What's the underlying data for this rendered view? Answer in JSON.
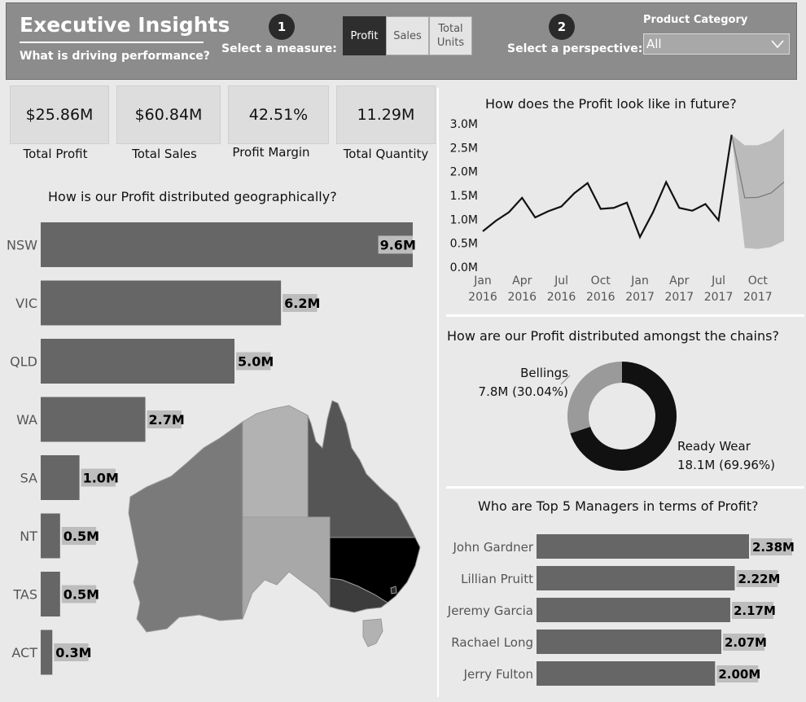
{
  "header": {
    "title": "Executive Insights",
    "subtitle": "What is driving performance?",
    "step1_number": "1",
    "step1_label": "Select a measure:",
    "measures": [
      {
        "label": "Profit",
        "active": true
      },
      {
        "label": "Sales",
        "active": false
      },
      {
        "label": "Total Units",
        "active": false
      }
    ],
    "step2_number": "2",
    "step2_label": "Select a perspective:",
    "category_label": "Product Category",
    "category_value": "All",
    "chevron_icon": "chevron-down-icon"
  },
  "kpis": [
    {
      "value": "$25.86M",
      "label": "Total Profit"
    },
    {
      "value": "$60.84M",
      "label": "Total Sales"
    },
    {
      "value": "42.51%",
      "label": "Profit Margin"
    },
    {
      "value": "11.29M",
      "label": "Total Quantity"
    }
  ],
  "geo": {
    "title": "How is our Profit distributed geographically?",
    "map_icon": "australia-map-icon"
  },
  "forecast": {
    "title": "How does the Profit look like in future?"
  },
  "chains": {
    "title": "How are our Profit distributed amongst the chains?"
  },
  "managers": {
    "title": "Who are Top 5 Managers in terms of Profit?"
  },
  "chart_data": [
    {
      "type": "bar",
      "orientation": "horizontal",
      "title": "How is our Profit distributed geographically?",
      "categories": [
        "NSW",
        "VIC",
        "QLD",
        "WA",
        "SA",
        "NT",
        "TAS",
        "ACT"
      ],
      "values": [
        9.6,
        6.2,
        5.0,
        2.7,
        1.0,
        0.5,
        0.5,
        0.3
      ],
      "data_labels": [
        "9.6M",
        "6.2M",
        "5.0M",
        "2.7M",
        "1.0M",
        "0.5M",
        "0.5M",
        "0.3M"
      ],
      "color": "#666666"
    },
    {
      "type": "line",
      "title": "How does the Profit look like in future?",
      "x": [
        "2016-01",
        "2016-02",
        "2016-03",
        "2016-04",
        "2016-05",
        "2016-06",
        "2016-07",
        "2016-08",
        "2016-09",
        "2016-10",
        "2016-11",
        "2016-12",
        "2017-01",
        "2017-02",
        "2017-03",
        "2017-04",
        "2017-05",
        "2017-06",
        "2017-07",
        "2017-08"
      ],
      "values": [
        0.75,
        0.97,
        1.15,
        1.45,
        1.04,
        1.17,
        1.27,
        1.55,
        1.76,
        1.22,
        1.24,
        1.35,
        0.63,
        1.15,
        1.78,
        1.24,
        1.18,
        1.32,
        0.98,
        2.77
      ],
      "forecast": {
        "x": [
          "2017-08",
          "2017-09",
          "2017-10",
          "2017-11",
          "2017-12"
        ],
        "values": [
          2.77,
          1.45,
          1.46,
          1.55,
          1.78
        ],
        "upper": [
          2.77,
          2.55,
          2.55,
          2.65,
          2.9
        ],
        "lower": [
          2.77,
          0.4,
          0.38,
          0.42,
          0.55
        ]
      },
      "yticks": [
        "0.0M",
        "0.5M",
        "1.0M",
        "1.5M",
        "2.0M",
        "2.5M",
        "3.0M"
      ],
      "xticks": [
        {
          "month": "Jan",
          "year": "2016",
          "at": "2016-01"
        },
        {
          "month": "Apr",
          "year": "2016",
          "at": "2016-04"
        },
        {
          "month": "Jul",
          "year": "2016",
          "at": "2016-07"
        },
        {
          "month": "Oct",
          "year": "2016",
          "at": "2016-10"
        },
        {
          "month": "Jan",
          "year": "2017",
          "at": "2017-01"
        },
        {
          "month": "Apr",
          "year": "2017",
          "at": "2017-04"
        },
        {
          "month": "Jul",
          "year": "2017",
          "at": "2017-07"
        },
        {
          "month": "Oct",
          "year": "2017",
          "at": "2017-10"
        }
      ],
      "ylim": [
        0,
        3.0
      ],
      "line_color": "#111111",
      "band_color": "#bbbbbb"
    },
    {
      "type": "pie",
      "subtype": "donut",
      "title": "How are our Profit distributed amongst the chains?",
      "slices": [
        {
          "name": "Ready Wear",
          "value": 18.1,
          "label": "18.1M (69.96%)",
          "color": "#111111"
        },
        {
          "name": "Bellings",
          "value": 7.8,
          "label": "7.8M (30.04%)",
          "color": "#9a9a9a"
        }
      ]
    },
    {
      "type": "bar",
      "orientation": "horizontal",
      "title": "Who are Top 5 Managers in terms of Profit?",
      "categories": [
        "John Gardner",
        "Lillian Pruitt",
        "Jeremy Garcia",
        "Rachael Long",
        "Jerry Fulton"
      ],
      "values": [
        2.38,
        2.22,
        2.17,
        2.07,
        2.0
      ],
      "data_labels": [
        "2.38M",
        "2.22M",
        "2.17M",
        "2.07M",
        "2.00M"
      ],
      "color": "#666666"
    }
  ]
}
